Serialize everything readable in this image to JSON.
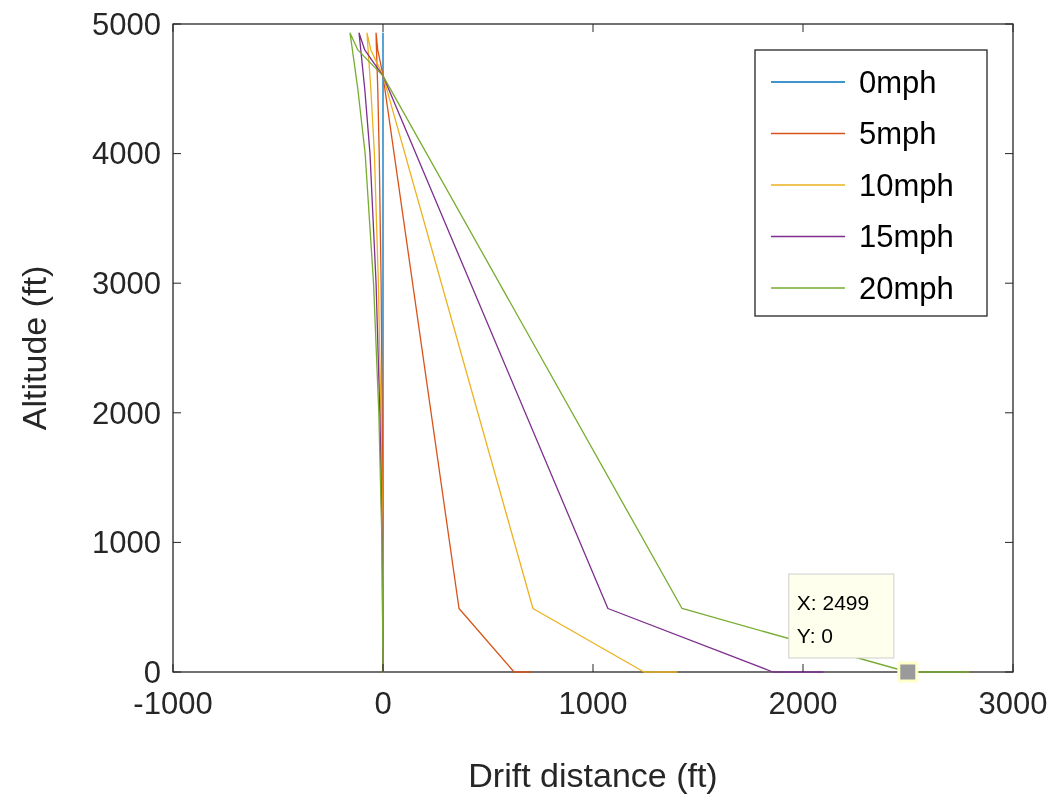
{
  "chart_data": {
    "type": "line",
    "xlabel": "Drift distance (ft)",
    "ylabel": "Altitude (ft)",
    "xlim": [
      -1000,
      3000
    ],
    "ylim": [
      0,
      5000
    ],
    "xticks": [
      -1000,
      0,
      1000,
      2000,
      3000
    ],
    "yticks": [
      0,
      1000,
      2000,
      3000,
      4000,
      5000
    ],
    "grid": false,
    "legend": "top right",
    "marker": "none",
    "line_style": "solid",
    "series": [
      {
        "name": "0mph",
        "color": "#0072bd",
        "x": [
          0,
          0
        ],
        "values": [
          0,
          4930
        ]
      },
      {
        "name": "5mph",
        "color": "#d95319",
        "x": [
          0,
          -1,
          -4,
          -9,
          -18,
          -25,
          -32,
          -33,
          -25,
          -12,
          0,
          362,
          624,
          705
        ],
        "values": [
          0,
          1000,
          2000,
          3000,
          4000,
          4500,
          4850,
          4930,
          4800,
          4700,
          4600,
          490,
          0,
          0
        ]
      },
      {
        "name": "10mph",
        "color": "#edb120",
        "x": [
          0,
          -2,
          -10,
          -22,
          -41,
          -58,
          -73,
          -76,
          -58,
          -29,
          0,
          714,
          1243,
          1400
        ],
        "values": [
          0,
          1000,
          2000,
          3000,
          4000,
          4500,
          4850,
          4930,
          4800,
          4700,
          4600,
          490,
          0,
          0
        ]
      },
      {
        "name": "15mph",
        "color": "#7e2f8e",
        "x": [
          0,
          -4,
          -15,
          -33,
          -62,
          -87,
          -109,
          -114,
          -87,
          -44,
          0,
          1071,
          1857,
          2095
        ],
        "values": [
          0,
          1000,
          2000,
          3000,
          4000,
          4500,
          4850,
          4930,
          4800,
          4700,
          4600,
          490,
          0,
          0
        ]
      },
      {
        "name": "20mph",
        "color": "#77ac30",
        "x": [
          0,
          -5,
          -20,
          -45,
          -85,
          -120,
          -150,
          -157,
          -120,
          -60,
          0,
          1424,
          2499,
          2790
        ],
        "values": [
          0,
          1000,
          2000,
          3000,
          4000,
          4500,
          4850,
          4930,
          4800,
          4700,
          4600,
          490,
          0,
          0
        ]
      }
    ],
    "annotations": [
      {
        "text": "X: 2499\nY: 0",
        "x": 2499,
        "y": 0
      }
    ]
  }
}
